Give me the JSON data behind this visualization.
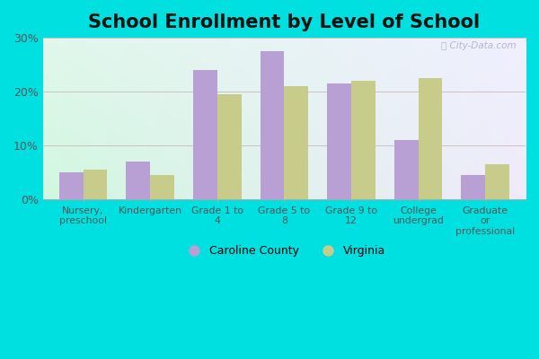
{
  "title": "School Enrollment by Level of School",
  "categories": [
    "Nursery,\npreschool",
    "Kindergarten",
    "Grade 1 to\n4",
    "Grade 5 to\n8",
    "Grade 9 to\n12",
    "College\nundergrad",
    "Graduate\nor\nprofessional"
  ],
  "caroline_county": [
    5.0,
    7.0,
    24.0,
    27.5,
    21.5,
    11.0,
    4.5
  ],
  "virginia": [
    5.5,
    4.5,
    19.5,
    21.0,
    22.0,
    22.5,
    6.5
  ],
  "caroline_color": "#b89fd4",
  "virginia_color": "#c8cc8a",
  "legend_labels": [
    "Caroline County",
    "Virginia"
  ],
  "ylim": [
    0,
    30
  ],
  "yticks": [
    0,
    10,
    20,
    30
  ],
  "yticklabels": [
    "0%",
    "10%",
    "20%",
    "30%"
  ],
  "background_outer": "#00e0e0",
  "title_fontsize": 15,
  "bar_width": 0.36,
  "watermark": "ⓘ City-Data.com"
}
